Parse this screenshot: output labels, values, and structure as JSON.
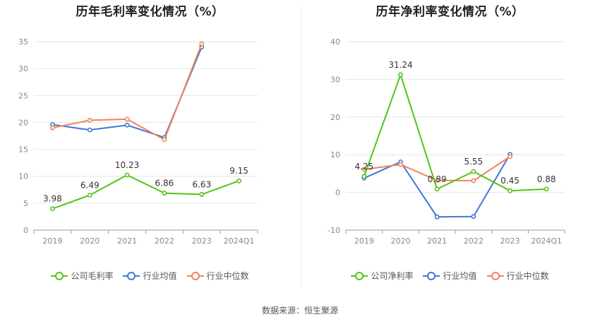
{
  "chart_data": [
    {
      "type": "line",
      "title": "历年毛利率变化情况（%）",
      "categories": [
        "2019",
        "2020",
        "2021",
        "2022",
        "2023",
        "2024Q1"
      ],
      "ylim": [
        0,
        35
      ],
      "yticks": [
        0,
        5,
        10,
        15,
        20,
        25,
        30,
        35
      ],
      "grid": true,
      "legend_position": "bottom",
      "series": [
        {
          "name": "公司毛利率",
          "color": "#52c41a",
          "values": [
            3.98,
            6.49,
            10.23,
            6.86,
            6.63,
            9.15
          ],
          "labels": [
            "3.98",
            "6.49",
            "10.23",
            "6.86",
            "6.63",
            "9.15"
          ]
        },
        {
          "name": "行业均值",
          "color": "#3d78d8",
          "values": [
            19.6,
            18.6,
            19.5,
            17.2,
            34.0,
            null
          ]
        },
        {
          "name": "行业中位数",
          "color": "#f0845c",
          "values": [
            19.0,
            20.4,
            20.6,
            16.8,
            34.6,
            null
          ]
        }
      ]
    },
    {
      "type": "line",
      "title": "历年净利率变化情况（%）",
      "categories": [
        "2019",
        "2020",
        "2021",
        "2022",
        "2023",
        "2024Q1"
      ],
      "ylim": [
        -10,
        40
      ],
      "yticks": [
        -10,
        0,
        10,
        20,
        30,
        40
      ],
      "grid": true,
      "legend_position": "bottom",
      "series": [
        {
          "name": "公司净利率",
          "color": "#52c41a",
          "values": [
            4.25,
            31.24,
            0.89,
            5.55,
            0.45,
            0.88
          ],
          "labels": [
            "4.25",
            "31.24",
            "0.89",
            "5.55",
            "0.45",
            "0.88"
          ]
        },
        {
          "name": "行业均值",
          "color": "#3d78d8",
          "values": [
            3.8,
            8.1,
            -6.5,
            -6.4,
            10.1,
            null
          ]
        },
        {
          "name": "行业中位数",
          "color": "#f0845c",
          "values": [
            6.1,
            7.4,
            3.2,
            3.1,
            9.5,
            null
          ]
        }
      ]
    }
  ],
  "source": "数据来源：恒生聚源"
}
